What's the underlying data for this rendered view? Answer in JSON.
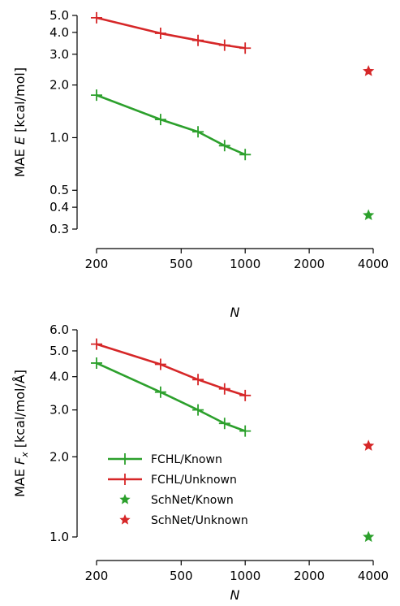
{
  "chart_data": [
    {
      "type": "line",
      "xlabel": "N",
      "ylabel_prefix": "MAE ",
      "ylabel_var": "E",
      "ylabel_suffix": " [kcal/mol]",
      "xscale": "log",
      "yscale": "log",
      "xlim": [
        200,
        4000
      ],
      "ylim": [
        0.3,
        5.0
      ],
      "xticks": [
        200,
        500,
        1000,
        2000,
        4000
      ],
      "xtick_labels": [
        "200",
        "500",
        "1000",
        "2000",
        "4000"
      ],
      "yticks": [
        0.3,
        0.4,
        0.5,
        1.0,
        2.0,
        3.0,
        4.0,
        5.0
      ],
      "ytick_labels": [
        "0.3",
        "0.4",
        "0.5",
        "1.0",
        "2.0",
        "3.0",
        "4.0",
        "5.0"
      ],
      "grid": false,
      "series": [
        {
          "name": "FCHL/Known",
          "marker": "+",
          "color": "#2ca02c",
          "x": [
            200,
            400,
            600,
            800,
            1000
          ],
          "values": [
            1.75,
            1.27,
            1.08,
            0.9,
            0.8
          ]
        },
        {
          "name": "FCHL/Unknown",
          "marker": "+",
          "color": "#d62728",
          "x": [
            200,
            400,
            600,
            800,
            1000
          ],
          "values": [
            4.85,
            3.95,
            3.6,
            3.38,
            3.25
          ]
        },
        {
          "name": "SchNet/Known",
          "marker": "star",
          "color": "#2ca02c",
          "x": [
            3800
          ],
          "values": [
            0.36
          ]
        },
        {
          "name": "SchNet/Unknown",
          "marker": "star",
          "color": "#d62728",
          "x": [
            3800
          ],
          "values": [
            2.4
          ]
        }
      ]
    },
    {
      "type": "line",
      "xlabel": "N",
      "ylabel_prefix": "MAE ",
      "ylabel_var": "F",
      "ylabel_sub": "x",
      "ylabel_suffix": " [kcal/mol/Å]",
      "xscale": "log",
      "yscale": "log",
      "xlim": [
        200,
        4000
      ],
      "ylim": [
        1.0,
        6.0
      ],
      "xticks": [
        200,
        500,
        1000,
        2000,
        4000
      ],
      "xtick_labels": [
        "200",
        "500",
        "1000",
        "2000",
        "4000"
      ],
      "yticks": [
        1.0,
        2.0,
        3.0,
        4.0,
        5.0,
        6.0
      ],
      "ytick_labels": [
        "1.0",
        "2.0",
        "3.0",
        "4.0",
        "5.0",
        "6.0"
      ],
      "grid": false,
      "legend": {
        "placement": "lower-left"
      },
      "series": [
        {
          "name": "FCHL/Known",
          "marker": "+",
          "color": "#2ca02c",
          "x": [
            200,
            400,
            600,
            800,
            1000
          ],
          "values": [
            4.5,
            3.5,
            3.0,
            2.67,
            2.5
          ]
        },
        {
          "name": "FCHL/Unknown",
          "marker": "+",
          "color": "#d62728",
          "x": [
            200,
            400,
            600,
            800,
            1000
          ],
          "values": [
            5.3,
            4.45,
            3.9,
            3.6,
            3.4
          ]
        },
        {
          "name": "SchNet/Known",
          "marker": "star",
          "color": "#2ca02c",
          "x": [
            3800
          ],
          "values": [
            1.0
          ]
        },
        {
          "name": "SchNet/Unknown",
          "marker": "star",
          "color": "#d62728",
          "x": [
            3800
          ],
          "values": [
            2.2
          ]
        }
      ]
    }
  ]
}
